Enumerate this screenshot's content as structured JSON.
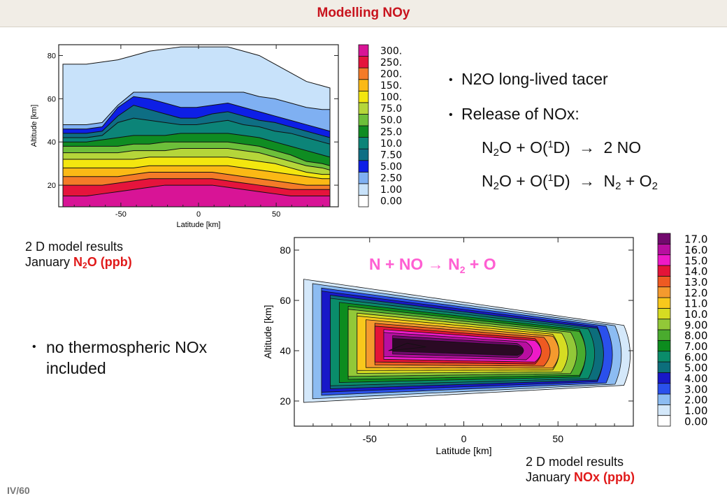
{
  "header": {
    "title": "Modelling NOy"
  },
  "bullets": {
    "b1": "N2O long-lived tacer",
    "b2": "Release of NOx:",
    "b3": "no thermospheric NOx included"
  },
  "reactions": {
    "eq1": {
      "lhs": "N",
      "lhs_sub": "2",
      "lhs2": "O + O(",
      "sup": "1",
      "mid": "D)",
      "arrow": "→",
      "rhs": "2 NO"
    },
    "eq2": {
      "lhs": "N",
      "lhs_sub": "2",
      "lhs2": "O + O(",
      "sup": "1",
      "mid": "D)",
      "arrow": "→",
      "rhs1": "N",
      "rhs1_sub": "2",
      "plus": "+",
      "rhs2": "O",
      "rhs2_sub": "2"
    },
    "eq3": {
      "lhs": "N + NO",
      "arrow": "→",
      "rhs1": "N",
      "rhs1_sub": "2",
      "rhs2": "+ O"
    }
  },
  "captions": {
    "c1_line1": "2 D model results",
    "c1_prefix": "January ",
    "c1_species": "N",
    "c1_species_sub": "2",
    "c1_species2": "O (ppb)",
    "c2_line1": "2 D model results",
    "c2_prefix": "January ",
    "c2_species": "NOx (ppb)"
  },
  "page_number": "IV/60",
  "chart_data": [
    {
      "type": "contour",
      "title": "",
      "xlabel": "Latitude [km]",
      "ylabel": "Altitude [km]",
      "xlim": [
        -90,
        90
      ],
      "ylim": [
        10,
        85
      ],
      "xticks": [
        "-50",
        "0",
        "50"
      ],
      "xtick_values": [
        -50,
        0,
        50
      ],
      "yticks": [
        "20",
        "40",
        "60",
        "80"
      ],
      "ytick_values": [
        20,
        40,
        60,
        80
      ],
      "levels": [
        0.0,
        1.0,
        2.5,
        5.0,
        7.5,
        10.0,
        25.0,
        50.0,
        75.0,
        100.0,
        150.0,
        200.0,
        250.0,
        300.0
      ],
      "colorbar_labels": [
        "0.00",
        "1.00",
        "2.50",
        "5.00",
        "7.50",
        "10.0",
        "25.0",
        "50.0",
        "75.0",
        "100.",
        "150.",
        "200.",
        "250.",
        "300."
      ],
      "colors": [
        "#ffffff",
        "#c8e2fa",
        "#7fb0f2",
        "#0d1fe6",
        "#0e6e84",
        "#0c8478",
        "#0f8c22",
        "#6dbf3a",
        "#b5d63a",
        "#f3e60f",
        "#fbb915",
        "#f47b28",
        "#e5143c",
        "#d81496",
        "#980ea4"
      ],
      "x": [
        -85,
        -70,
        -60,
        -50,
        -40,
        -30,
        -20,
        -10,
        0,
        10,
        20,
        30,
        40,
        50,
        60,
        70,
        80,
        85
      ],
      "contour_altitude": [
        {
          "level": 1.0,
          "z": [
            76,
            76,
            77,
            78,
            80,
            82,
            83,
            84,
            84,
            84,
            84,
            82,
            80,
            76,
            72,
            68,
            66,
            65
          ]
        },
        {
          "level": 2.5,
          "z": [
            48,
            48,
            49,
            57,
            63,
            63,
            63,
            63,
            63,
            63,
            63,
            63,
            61,
            60,
            58,
            56,
            55,
            55
          ]
        },
        {
          "level": 5.0,
          "z": [
            46,
            46,
            47,
            56,
            61,
            60,
            58,
            56,
            56,
            57,
            58,
            56,
            54,
            52,
            50,
            48,
            46,
            45
          ]
        },
        {
          "level": 7.5,
          "z": [
            44,
            44,
            45,
            52,
            57,
            55,
            53,
            51,
            51,
            53,
            54,
            52,
            50,
            49,
            47,
            45,
            43,
            42
          ]
        },
        {
          "level": 10.0,
          "z": [
            42,
            42,
            43,
            49,
            51,
            50,
            49,
            48,
            48,
            49,
            50,
            48,
            47,
            45,
            44,
            42,
            40,
            39
          ]
        },
        {
          "level": 25.0,
          "z": [
            40,
            40,
            41,
            42,
            43,
            43,
            43,
            44,
            44,
            44,
            44,
            43,
            42,
            40,
            38,
            36,
            34,
            33
          ]
        },
        {
          "level": 50.0,
          "z": [
            38,
            38,
            38,
            38,
            39,
            39,
            40,
            40,
            40,
            40,
            40,
            39,
            38,
            36,
            34,
            31,
            30,
            29
          ]
        },
        {
          "level": 75.0,
          "z": [
            35,
            35,
            35,
            35,
            36,
            36,
            36,
            37,
            37,
            37,
            37,
            36,
            35,
            33,
            31,
            29,
            28,
            27
          ]
        },
        {
          "level": 100.0,
          "z": [
            32,
            32,
            32,
            32,
            32,
            33,
            33,
            33,
            33,
            33,
            33,
            32,
            31,
            30,
            28,
            26,
            25,
            25
          ]
        },
        {
          "level": 150.0,
          "z": [
            28,
            28,
            28,
            28,
            28,
            29,
            29,
            29,
            29,
            29,
            29,
            28,
            27,
            26,
            25,
            24,
            23,
            23
          ]
        },
        {
          "level": 200.0,
          "z": [
            24,
            24,
            24,
            24,
            25,
            26,
            26,
            26,
            26,
            26,
            25,
            24,
            23,
            22,
            21,
            20,
            20,
            20
          ]
        },
        {
          "level": 250.0,
          "z": [
            20,
            20,
            20,
            21,
            22,
            23,
            23,
            23,
            23,
            23,
            22,
            21,
            20,
            19,
            18,
            18,
            18,
            18
          ]
        },
        {
          "level": 300.0,
          "z": [
            15,
            15,
            16,
            17,
            18,
            19,
            20,
            20,
            20,
            20,
            19,
            18,
            17,
            16,
            15,
            15,
            15,
            15
          ]
        }
      ]
    },
    {
      "type": "contour",
      "title": "",
      "xlabel": "Latitude [km]",
      "ylabel": "Altitude [km]",
      "xlim": [
        -90,
        90
      ],
      "ylim": [
        10,
        85
      ],
      "xticks": [
        "-50",
        "0",
        "50"
      ],
      "xtick_values": [
        -50,
        0,
        50
      ],
      "yticks": [
        "20",
        "40",
        "60",
        "80"
      ],
      "ytick_values": [
        20,
        40,
        60,
        80
      ],
      "levels": [
        0.0,
        1.0,
        2.0,
        3.0,
        4.0,
        5.0,
        6.0,
        7.0,
        8.0,
        9.0,
        10.0,
        11.0,
        12.0,
        13.0,
        14.0,
        15.0,
        16.0,
        17.0
      ],
      "colorbar_labels": [
        "0.00",
        "1.00",
        "2.00",
        "3.00",
        "4.00",
        "5.00",
        "6.00",
        "7.00",
        "8.00",
        "9.00",
        "10.0",
        "11.0",
        "12.0",
        "13.0",
        "14.0",
        "15.0",
        "16.0",
        "17.0"
      ],
      "colors": [
        "#ffffff",
        "#d4e8fa",
        "#8cbcf2",
        "#2a50ec",
        "#1818c8",
        "#0c6e7c",
        "#0a8c6a",
        "#0c8c1e",
        "#4aab2e",
        "#92c838",
        "#d6dc22",
        "#f8c81c",
        "#f49a2e",
        "#ee5a22",
        "#e41438",
        "#ee1ac8",
        "#b80ea0",
        "#72096e",
        "#2a0a24"
      ],
      "note": "Bands of NOx between 0 and 17 ppb; maximum near 40 km, -35 deg latitude.",
      "max_region": {
        "x": [
          -40,
          -20
        ],
        "y": [
          40,
          43
        ]
      }
    }
  ]
}
